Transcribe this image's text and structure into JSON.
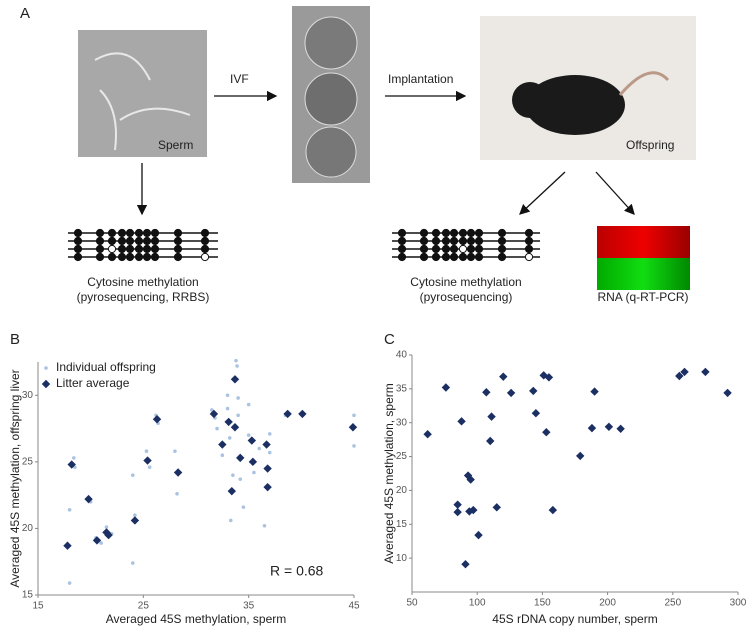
{
  "panel_a": {
    "label": "A",
    "sperm": "Sperm",
    "ivf": "IVF",
    "implantation": "Implantation",
    "offspring": "Offspring",
    "left_caption": [
      "Cytosine methylation",
      "(pyrosequencing, RRBS)"
    ],
    "right_caption": [
      "Cytosine methylation",
      "(pyrosequencing)"
    ],
    "rna_caption": "RNA (q-RT-PCR)"
  },
  "chart_data": [
    {
      "type": "scatter",
      "panel": "B",
      "x_label": "Averaged 45S methylation, sperm",
      "y_label": "Averaged 45S methylation, offspring liver",
      "annotation": "R = 0.68",
      "xlim": [
        15,
        45
      ],
      "xticks": [
        15,
        25,
        35,
        45
      ],
      "ylim": [
        15,
        32.5
      ],
      "yticks": [
        15,
        20,
        25,
        30
      ],
      "legend": "top-left",
      "series": [
        {
          "name": "Individual offspring",
          "color": "#a9c3e0",
          "marker": "circle",
          "x": [
            18,
            18,
            18.4,
            18.5,
            20,
            20.5,
            21,
            21.5,
            22,
            24,
            24,
            24.2,
            25.3,
            25.6,
            26.2,
            26.4,
            28,
            28.2,
            31.5,
            31.8,
            32,
            32.5,
            33,
            33,
            33.2,
            33.3,
            33.5,
            33.8,
            33.9,
            34,
            34,
            34.2,
            34.5,
            35,
            35,
            35.5,
            36,
            36.5,
            37,
            37,
            38.5,
            40,
            45,
            45
          ],
          "values": [
            21.4,
            15.9,
            25.3,
            24.6,
            22,
            19.3,
            18.9,
            20.1,
            19.6,
            24,
            17.4,
            21,
            25.8,
            24.6,
            28.5,
            27.9,
            25.8,
            22.6,
            28.9,
            28.3,
            27.5,
            25.5,
            30,
            29,
            26.8,
            20.6,
            24,
            32.6,
            32.2,
            29.8,
            28.5,
            23.7,
            21.6,
            29.3,
            27,
            24.2,
            26,
            20.2,
            27.1,
            25.7,
            28.5,
            28.6,
            28.5,
            26.2
          ]
        },
        {
          "name": "Litter average",
          "color": "#1b2f63",
          "marker": "diamond",
          "x": [
            17.8,
            18.2,
            19.8,
            20.6,
            21.5,
            21.7,
            24.2,
            25.4,
            26.3,
            28.3,
            31.7,
            32.5,
            33.1,
            33.4,
            33.7,
            33.7,
            34.2,
            35.3,
            35.4,
            36.7,
            36.8,
            36.8,
            38.7,
            40.1,
            44.9
          ],
          "values": [
            18.7,
            24.8,
            22.2,
            19.1,
            19.7,
            19.5,
            20.6,
            25.1,
            28.2,
            24.2,
            28.6,
            26.3,
            28,
            22.8,
            31.2,
            27.6,
            25.3,
            26.6,
            25,
            26.3,
            24.5,
            23.1,
            28.6,
            28.6,
            27.6
          ]
        }
      ]
    },
    {
      "type": "scatter",
      "panel": "C",
      "x_label": "45S rDNA copy number, sperm",
      "y_label": "Averaged 45S methylation, sperm",
      "xlim": [
        50,
        300
      ],
      "xticks": [
        50,
        100,
        150,
        200,
        250,
        300
      ],
      "ylim": [
        5,
        40
      ],
      "yticks": [
        10,
        15,
        20,
        25,
        30,
        35,
        40
      ],
      "series": [
        {
          "color": "#1b2f63",
          "marker": "diamond",
          "x": [
            62,
            76,
            85,
            85,
            88,
            91,
            93,
            95,
            94,
            97,
            101,
            107,
            110,
            111,
            115,
            120,
            126,
            143,
            145,
            151,
            153,
            155,
            158,
            179,
            188,
            190,
            201,
            210,
            255,
            259,
            275,
            292
          ],
          "values": [
            28.3,
            35.2,
            17.9,
            16.8,
            30.2,
            9.1,
            22.2,
            21.6,
            16.9,
            17.1,
            13.4,
            34.5,
            27.3,
            30.9,
            17.5,
            36.8,
            34.4,
            34.7,
            31.4,
            37,
            28.6,
            36.7,
            17.1,
            25.1,
            29.2,
            34.6,
            29.4,
            29.1,
            36.9,
            37.5,
            37.5,
            34.4
          ]
        }
      ]
    }
  ]
}
